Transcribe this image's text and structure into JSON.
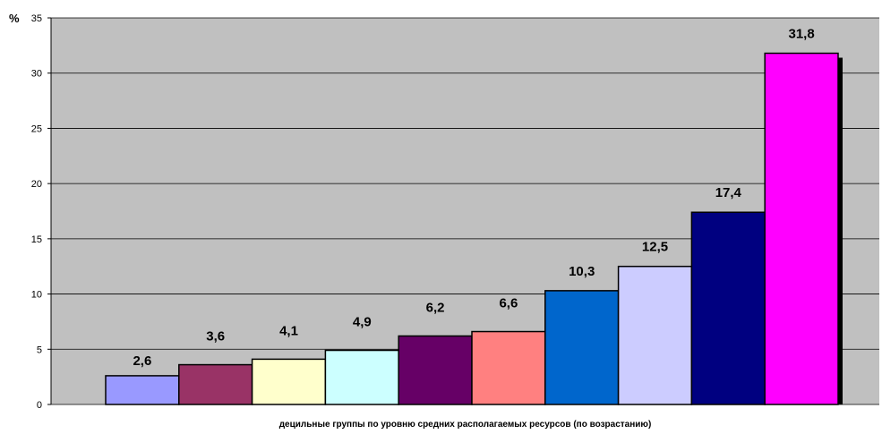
{
  "chart_data": {
    "type": "bar",
    "title": "",
    "xlabel": "децильные группы по уровню средних располагаемых ресурсов (по возрастанию)",
    "ylabel": "%",
    "ylim": [
      0,
      35
    ],
    "yticks": [
      0,
      5,
      10,
      15,
      20,
      25,
      30,
      35
    ],
    "grid": true,
    "legend": "none",
    "plot_background": "#c0c0c0",
    "values": [
      2.6,
      3.6,
      4.1,
      4.9,
      6.2,
      6.6,
      10.3,
      12.5,
      17.4,
      31.8
    ],
    "value_labels": [
      "2,6",
      "3,6",
      "4,1",
      "4,9",
      "6,2",
      "6,6",
      "10,3",
      "12,5",
      "17,4",
      "31,8"
    ],
    "colors": [
      "#9999ff",
      "#993366",
      "#ffffcc",
      "#ccffff",
      "#660066",
      "#ff8080",
      "#0066cc",
      "#ccccff",
      "#000080",
      "#ff00ff"
    ]
  }
}
